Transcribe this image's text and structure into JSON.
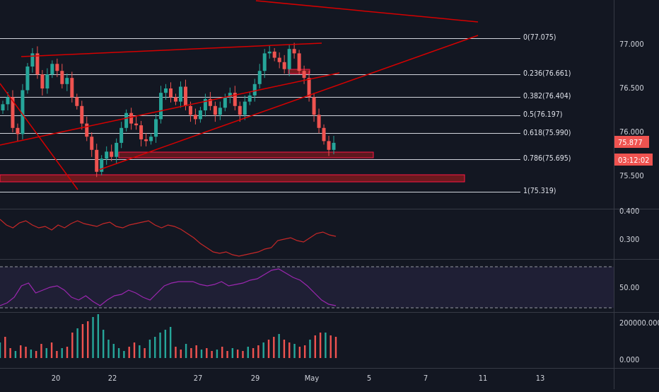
{
  "price_axis": {
    "labels": [
      "77.000",
      "76.500",
      "76.000",
      "75.500"
    ],
    "last_price": "75.877",
    "countdown": "03:12:02"
  },
  "fib": {
    "levels": [
      {
        "ratio": 0,
        "price": 77.075,
        "label": "0(77.075)"
      },
      {
        "ratio": 0.236,
        "price": 76.661,
        "label": "0.236(76.661)"
      },
      {
        "ratio": 0.382,
        "price": 76.404,
        "label": "0.382(76.404)"
      },
      {
        "ratio": 0.5,
        "price": 76.197,
        "label": "0.5(76.197)"
      },
      {
        "ratio": 0.618,
        "price": 75.99,
        "label": "0.618(75.990)"
      },
      {
        "ratio": 0.786,
        "price": 75.695,
        "label": "0.786(75.695)"
      },
      {
        "ratio": 1,
        "price": 75.319,
        "label": "1(75.319)"
      }
    ]
  },
  "indicator1": {
    "labels": [
      "0.400",
      "0.300"
    ]
  },
  "rsi": {
    "labels": [
      "50.00"
    ]
  },
  "volume": {
    "labels": [
      "200000.000",
      "0.000"
    ]
  },
  "time_axis": {
    "labels": [
      "20",
      "22",
      "27",
      "29",
      "May",
      "5",
      "7",
      "11",
      "13"
    ]
  },
  "colors": {
    "background": "#131722",
    "up": "#26a69a",
    "down": "#ef5350",
    "drawing": "#d50000",
    "rsi": "#9c27b0",
    "text": "#d1d4dc"
  }
}
